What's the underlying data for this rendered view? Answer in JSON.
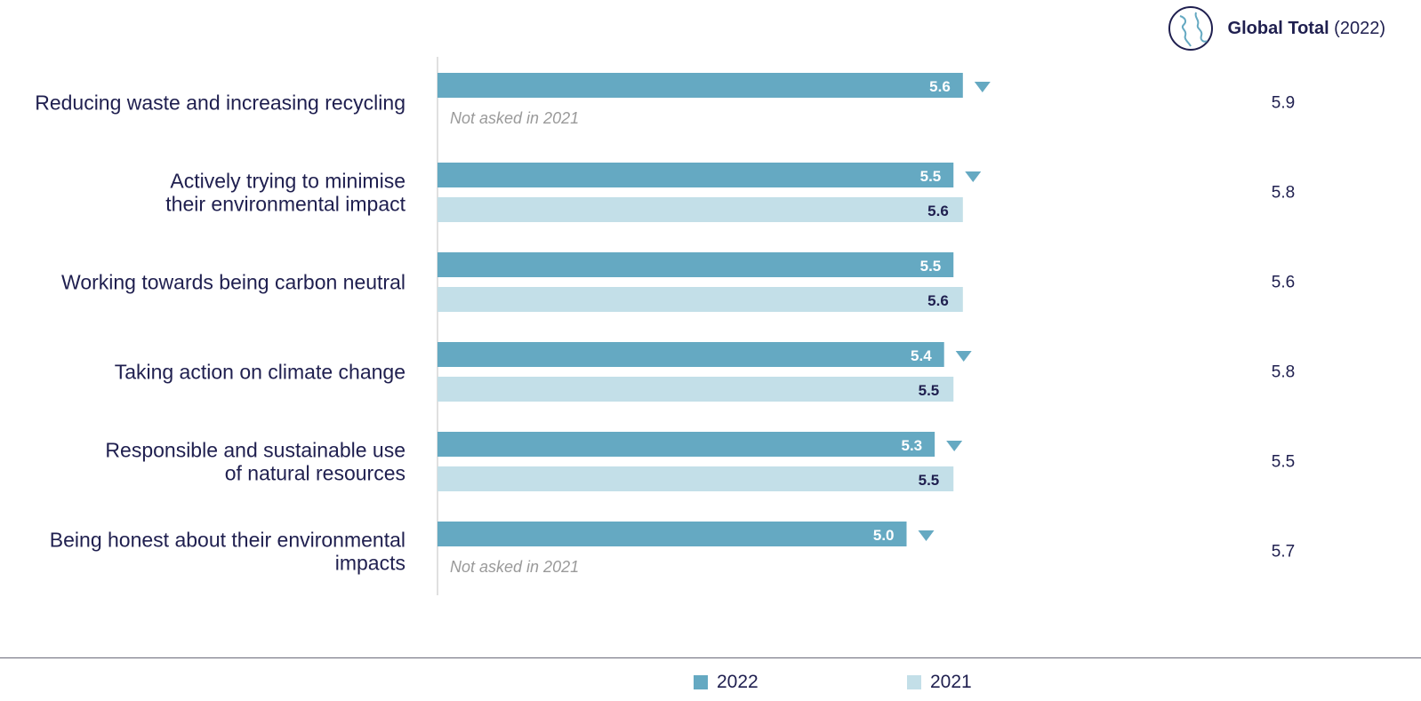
{
  "header": {
    "title_bold": "Global Total",
    "title_rest": " (2022)"
  },
  "colors": {
    "series_2022": "#65a9c2",
    "series_2021": "#c3dfe8",
    "text": "#1f1f4f",
    "down_marker": "#65a9c2"
  },
  "legend": {
    "items": [
      {
        "label": "2022",
        "color": "#65a9c2"
      },
      {
        "label": "2021",
        "color": "#c3dfe8"
      }
    ]
  },
  "chart_data": {
    "type": "bar",
    "orientation": "horizontal",
    "xlim": [
      0,
      7.5
    ],
    "grid": false,
    "legend_position": "bottom-center",
    "categories": [
      [
        "Reducing waste and increasing recycling"
      ],
      [
        "Actively trying to minimise",
        "their environmental impact"
      ],
      [
        "Working towards being carbon neutral"
      ],
      [
        "Taking action on climate change"
      ],
      [
        "Responsible and sustainable use",
        "of natural resources"
      ],
      [
        "Being honest about their environmental",
        "impacts"
      ]
    ],
    "series": [
      {
        "name": "2022",
        "values": [
          5.6,
          5.5,
          5.5,
          5.4,
          5.3,
          5.0
        ],
        "labels": [
          "5.6",
          "5.5",
          "5.5",
          "5.4",
          "5.3",
          "5.0"
        ]
      },
      {
        "name": "2021",
        "values": [
          null,
          5.6,
          5.6,
          5.5,
          5.5,
          null
        ],
        "labels": [
          "",
          "5.6",
          "5.6",
          "5.5",
          "5.5",
          ""
        ]
      }
    ],
    "not_asked_text": "Not asked in 2021",
    "decrease_marker": [
      true,
      true,
      false,
      true,
      true,
      true
    ],
    "global_total_2022": [
      "5.9",
      "5.8",
      "5.6",
      "5.8",
      "5.5",
      "5.7"
    ]
  }
}
